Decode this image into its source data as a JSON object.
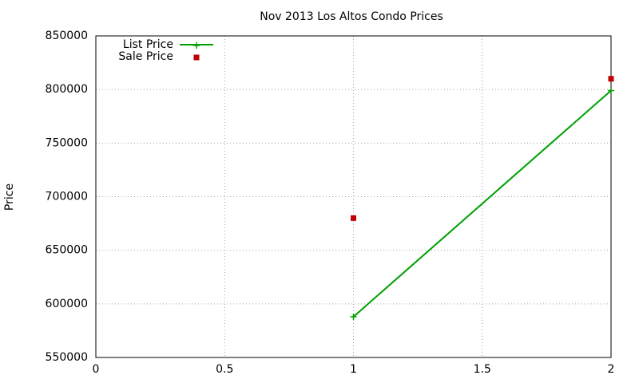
{
  "chart_data": {
    "type": "line",
    "title": "Nov 2013 Los Altos Condo Prices",
    "y_label": "Price",
    "x": [
      1,
      2
    ],
    "series": [
      {
        "name": "List Price",
        "color": "#00a000",
        "mode": "lines+markers",
        "values": [
          588000,
          799000
        ]
      },
      {
        "name": "Sale Price",
        "color": "#c00000",
        "mode": "markers",
        "values": [
          680000,
          810000
        ]
      }
    ],
    "xlim": [
      0,
      2
    ],
    "xticks": [
      0,
      0.5,
      1,
      1.5,
      2
    ],
    "ylim": [
      550000,
      850000
    ],
    "yticks": [
      550000,
      600000,
      650000,
      700000,
      750000,
      800000,
      850000
    ],
    "grid": true,
    "legend": "upper left"
  }
}
